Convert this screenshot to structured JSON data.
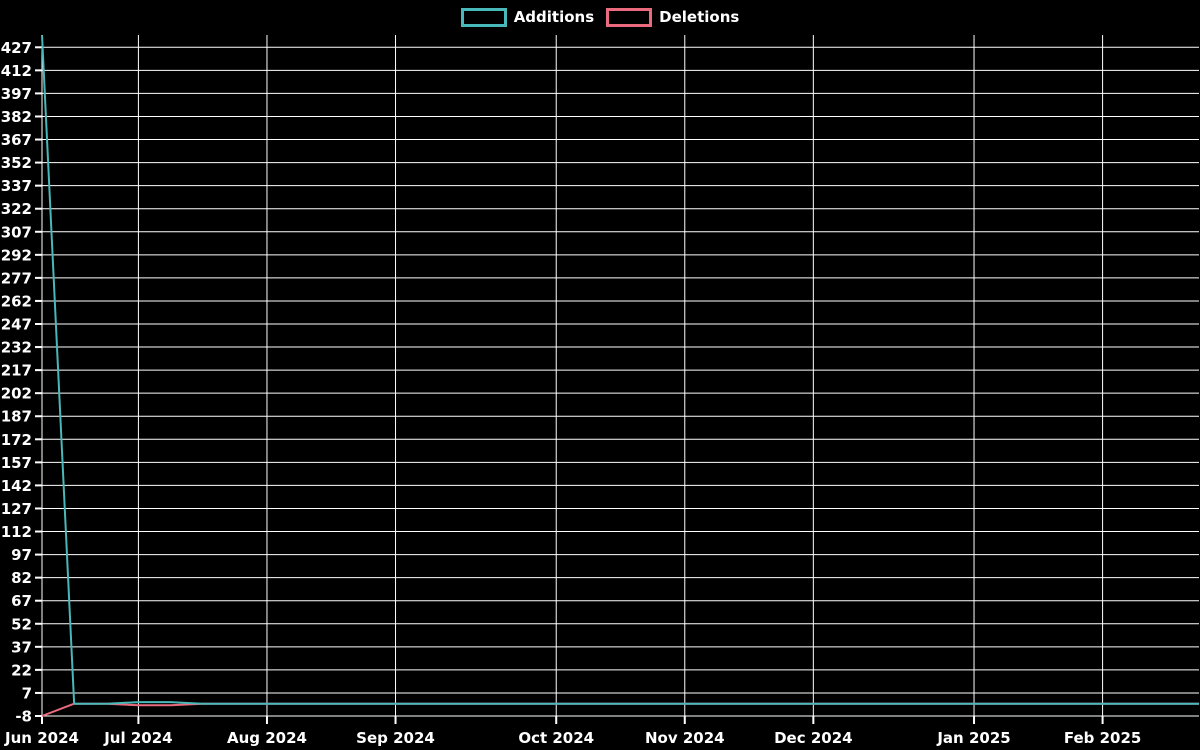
{
  "chart_data": {
    "type": "line",
    "title": "",
    "xlabel": "",
    "ylabel": "",
    "background_color": "#000000",
    "text_color": "#ffffff",
    "grid_color": "#ffffff",
    "grid": true,
    "legend_position": "top-center",
    "x_unit": "week-index",
    "x": [
      0,
      1,
      2,
      3,
      4,
      5,
      6,
      7,
      8,
      9,
      10,
      11,
      12,
      13,
      14,
      15,
      16,
      17,
      18,
      19,
      20,
      21,
      22,
      23,
      24,
      25,
      26,
      27,
      28,
      29,
      30,
      31,
      32,
      33,
      34,
      35,
      36
    ],
    "series": [
      {
        "name": "Additions",
        "color": "#49b8b8",
        "values": [
          435,
          0,
          0,
          1,
          1,
          0,
          0,
          0,
          0,
          0,
          0,
          0,
          0,
          0,
          0,
          0,
          0,
          0,
          0,
          0,
          0,
          0,
          0,
          0,
          0,
          0,
          0,
          0,
          0,
          0,
          0,
          0,
          0,
          0,
          0,
          0,
          0
        ]
      },
      {
        "name": "Deletions",
        "color": "#ea6a7e",
        "values": [
          -8,
          0,
          0,
          -1,
          -1,
          0,
          0,
          0,
          0,
          0,
          0,
          0,
          0,
          0,
          0,
          0,
          0,
          0,
          0,
          0,
          0,
          0,
          0,
          0,
          0,
          0,
          0,
          0,
          0,
          0,
          0,
          0,
          0,
          0,
          0,
          0,
          0
        ]
      }
    ],
    "x_axis": {
      "ticks": [
        {
          "label": "Jun 2024",
          "x": 0
        },
        {
          "label": "Jul 2024",
          "x": 3
        },
        {
          "label": "Aug 2024",
          "x": 7
        },
        {
          "label": "Sep 2024",
          "x": 11
        },
        {
          "label": "Oct 2024",
          "x": 16
        },
        {
          "label": "Nov 2024",
          "x": 20
        },
        {
          "label": "Dec 2024",
          "x": 24
        },
        {
          "label": "Jan 2025",
          "x": 29
        },
        {
          "label": "Feb 2025",
          "x": 33
        }
      ]
    },
    "y_axis": {
      "min": -8,
      "max": 435,
      "tick_step": 15,
      "ticks": [
        427,
        412,
        397,
        382,
        367,
        352,
        337,
        322,
        307,
        292,
        277,
        262,
        247,
        232,
        217,
        202,
        187,
        172,
        157,
        142,
        127,
        112,
        97,
        82,
        67,
        52,
        37,
        22,
        7,
        -8
      ]
    }
  }
}
